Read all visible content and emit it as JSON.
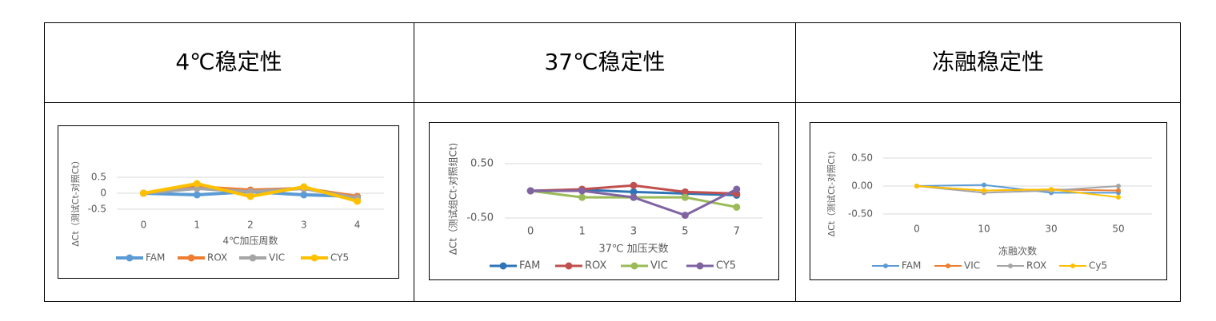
{
  "table": {
    "headers": [
      "4℃稳定性",
      "37℃稳定性",
      "冻融稳定性"
    ]
  },
  "chart_data": [
    {
      "type": "line",
      "x_label": "4℃加压周数",
      "y_label": "ΔCt（测试Ct-对照Ct）",
      "categories": [
        "0",
        "1",
        "2",
        "3",
        "4"
      ],
      "series": [
        {
          "name": "FAM",
          "color": "#5b9bd5",
          "values": [
            0,
            -0.05,
            0.05,
            -0.05,
            -0.1
          ]
        },
        {
          "name": "ROX",
          "color": "#ed7d31",
          "values": [
            0,
            0.2,
            0.1,
            0.15,
            -0.1
          ]
        },
        {
          "name": "VIC",
          "color": "#a5a5a5",
          "values": [
            0,
            0.15,
            0.05,
            0.15,
            -0.15
          ]
        },
        {
          "name": "CY5",
          "color": "#ffc000",
          "values": [
            0,
            0.3,
            -0.1,
            0.2,
            -0.25
          ]
        }
      ],
      "ylim": [
        -0.5,
        0.5
      ],
      "yticks": [
        0.5,
        0,
        -0.5
      ],
      "grid": true
    },
    {
      "type": "line",
      "x_label": "37℃ 加压天数",
      "y_label": "ΔCt（测试组Ct-对照组Ct)",
      "categories": [
        "0",
        "1",
        "3",
        "5",
        "7"
      ],
      "series": [
        {
          "name": "FAM",
          "color": "#2e75b6",
          "values": [
            0,
            0.02,
            -0.02,
            -0.05,
            -0.08
          ]
        },
        {
          "name": "ROX",
          "color": "#c0504d",
          "values": [
            0,
            0.03,
            0.1,
            -0.02,
            -0.05
          ]
        },
        {
          "name": "VIC",
          "color": "#9bbb59",
          "values": [
            0,
            -0.12,
            -0.12,
            -0.12,
            -0.3
          ]
        },
        {
          "name": "CY5",
          "color": "#8064a2",
          "values": [
            0,
            0,
            -0.12,
            -0.45,
            0.03
          ]
        }
      ],
      "ylim": [
        -0.5,
        0.5
      ],
      "yticks": [
        {
          "value": 0.5,
          "label": "0.50"
        },
        {
          "value": -0.5,
          "label": "-0.50"
        }
      ],
      "grid": true
    },
    {
      "type": "line",
      "x_label": "冻融次数",
      "y_label": "ΔCt（测试Ct-对照Ct)",
      "categories": [
        "0",
        "10",
        "30",
        "50"
      ],
      "series": [
        {
          "name": "FAM",
          "color": "#5b9bd5",
          "values": [
            0,
            0.02,
            -0.12,
            -0.12
          ]
        },
        {
          "name": "VIC",
          "color": "#ed7d31",
          "values": [
            0,
            -0.08,
            -0.06,
            -0.08
          ]
        },
        {
          "name": "ROX",
          "color": "#a5a5a5",
          "values": [
            0,
            -0.12,
            -0.08,
            0
          ]
        },
        {
          "name": "Cy5",
          "color": "#ffc000",
          "values": [
            0,
            -0.08,
            -0.06,
            -0.2
          ]
        }
      ],
      "ylim": [
        -0.5,
        0.5
      ],
      "yticks": [
        {
          "value": 0.5,
          "label": "0.50"
        },
        {
          "value": 0,
          "label": "0.00"
        },
        {
          "value": -0.5,
          "label": "-0.50"
        }
      ],
      "grid": true
    }
  ]
}
